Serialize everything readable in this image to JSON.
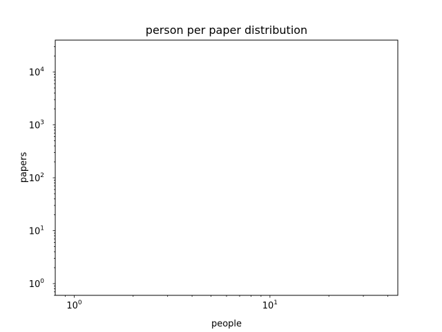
{
  "chart_data": {
    "type": "scatter",
    "title": "person per paper distribution",
    "xlabel": "people",
    "ylabel": "papers",
    "xscale": "log",
    "yscale": "log",
    "xlim": [
      0.8,
      45
    ],
    "ylim": [
      0.6,
      40000
    ],
    "xticks": [
      {
        "value": 1,
        "base": "10",
        "exp": "0"
      },
      {
        "value": 10,
        "base": "10",
        "exp": "1"
      }
    ],
    "yticks": [
      {
        "value": 1,
        "base": "10",
        "exp": "0"
      },
      {
        "value": 10,
        "base": "10",
        "exp": "1"
      },
      {
        "value": 100,
        "base": "10",
        "exp": "2"
      },
      {
        "value": 1000,
        "base": "10",
        "exp": "3"
      },
      {
        "value": 10000,
        "base": "10",
        "exp": "4"
      }
    ],
    "series": [],
    "grid": false,
    "legend": "none"
  }
}
